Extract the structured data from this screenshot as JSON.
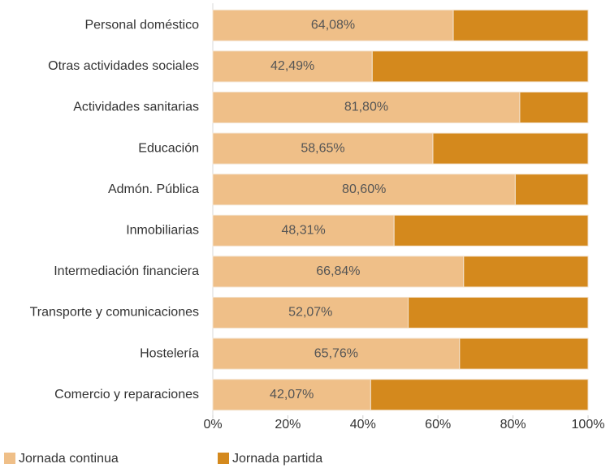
{
  "chart_data": {
    "type": "bar",
    "orientation": "horizontal",
    "stacked": true,
    "categories": [
      "Personal doméstico",
      "Otras actividades sociales",
      "Actividades sanitarias",
      "Educación",
      "Admón. Pública",
      "Inmobiliarias",
      "Intermediación financiera",
      "Transporte y comunicaciones",
      "Hostelería",
      "Comercio y reparaciones"
    ],
    "series": [
      {
        "name": "Jornada continua",
        "color": "#efbf88",
        "values": [
          64.08,
          42.49,
          81.8,
          58.65,
          80.6,
          48.31,
          66.84,
          52.07,
          65.76,
          42.07
        ],
        "value_labels": [
          "64,08%",
          "42,49%",
          "81,80%",
          "58,65%",
          "80,60%",
          "48,31%",
          "66,84%",
          "52,07%",
          "65,76%",
          "42,07%"
        ]
      },
      {
        "name": "Jornada partida",
        "color": "#d4891d",
        "values": [
          35.92,
          57.51,
          18.2,
          41.35,
          19.4,
          51.69,
          33.16,
          47.93,
          34.24,
          57.93
        ]
      }
    ],
    "xlim": [
      0,
      100
    ],
    "xticks": [
      {
        "value": 0,
        "label": "0%"
      },
      {
        "value": 20,
        "label": "20%"
      },
      {
        "value": 40,
        "label": "40%"
      },
      {
        "value": 60,
        "label": "60%"
      },
      {
        "value": 80,
        "label": "80%"
      },
      {
        "value": 100,
        "label": "100%"
      }
    ],
    "legend": "bottom"
  }
}
